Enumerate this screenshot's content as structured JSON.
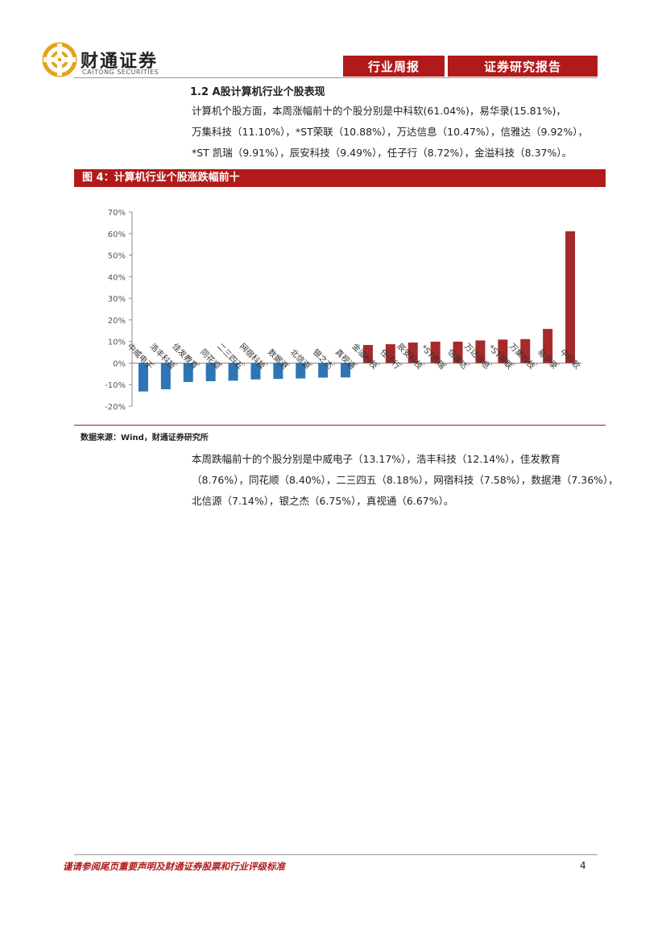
{
  "header": {
    "logo_cn": "财通证券",
    "logo_en": "CAITONG SECURITIES",
    "tag_left": "行业周报",
    "tag_right": "证券研究报告"
  },
  "section": {
    "title": "1.2  A股计算机行业个股表现",
    "paragraph1_lines": [
      "计算机个股方面，本周涨幅前十的个股分别是中科软(61.04%)，易华录(15.81%)，",
      "万集科技（11.10%），*ST荣联（10.88%），万达信息（10.47%），信雅达（9.92%），",
      "*ST 凯瑞（9.91%），辰安科技（9.49%），任子行（8.72%），金溢科技（8.37%）。"
    ]
  },
  "figure": {
    "caption": "图 4：计算机行业个股涨跌幅前十",
    "source": "数据来源：Wind，财通证券研究所"
  },
  "chart_data": {
    "type": "bar",
    "categories": [
      "中威电子",
      "浩丰科技",
      "佳发教育",
      "同花顺",
      "二三四五",
      "网宿科技",
      "数据港",
      "北信源",
      "银之杰",
      "真视通",
      "金溢科技",
      "任子行",
      "辰安科技",
      "*ST凯瑞",
      "信雅达",
      "万达信息",
      "*ST荣联",
      "万集科技",
      "易华录",
      "中科软"
    ],
    "values": [
      -13.17,
      -12.14,
      -8.76,
      -8.4,
      -8.18,
      -7.58,
      -7.36,
      -7.14,
      -6.75,
      -6.67,
      8.37,
      8.72,
      9.49,
      9.91,
      9.92,
      10.47,
      10.88,
      11.1,
      15.81,
      61.04
    ],
    "colors": [
      "#2e75b6",
      "#2e75b6",
      "#2e75b6",
      "#2e75b6",
      "#2e75b6",
      "#2e75b6",
      "#2e75b6",
      "#2e75b6",
      "#2e75b6",
      "#2e75b6",
      "#a52a2a",
      "#a52a2a",
      "#a52a2a",
      "#a52a2a",
      "#a52a2a",
      "#a52a2a",
      "#a52a2a",
      "#a52a2a",
      "#a52a2a",
      "#a52a2a"
    ],
    "yticks": [
      "70%",
      "60%",
      "50%",
      "40%",
      "30%",
      "20%",
      "10%",
      "0%",
      "-10%",
      "-20%"
    ],
    "ylim": [
      -20,
      70
    ],
    "grid": false
  },
  "section2": {
    "paragraph2_lines": [
      "本周跌幅前十的个股分别是中威电子（13.17%），浩丰科技（12.14%），佳发教育",
      "（8.76%），同花顺（8.40%），二三四五（8.18%），网宿科技（7.58%），数据港（7.36%），",
      "北信源（7.14%），银之杰（6.75%），真视通（6.67%）。"
    ]
  },
  "footer": {
    "disclaimer": "谨请参阅尾页重要声明及财通证券股票和行业评级标准",
    "page_number": "4"
  }
}
